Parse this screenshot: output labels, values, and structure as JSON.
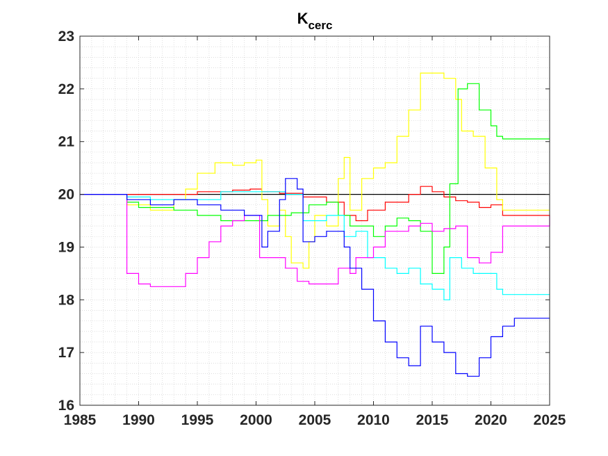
{
  "chart_data": {
    "type": "line",
    "title": "K",
    "title_subscript": "cerc",
    "xlabel": "",
    "ylabel": "",
    "xlim": [
      1985,
      2025
    ],
    "ylim": [
      16,
      23
    ],
    "xticks": [
      1985,
      1990,
      1995,
      2000,
      2005,
      2010,
      2015,
      2020,
      2025
    ],
    "yticks": [
      16,
      17,
      18,
      19,
      20,
      21,
      22,
      23
    ],
    "grid": "minor dotted",
    "line_style": "step",
    "series": [
      {
        "color": "#000000",
        "points": [
          [
            1985,
            20.0
          ],
          [
            2025,
            20.0
          ]
        ]
      },
      {
        "color": "#ff0000",
        "points": [
          [
            1985,
            20.0
          ],
          [
            1989,
            20.0
          ],
          [
            1995,
            20.05
          ],
          [
            1998,
            20.08
          ],
          [
            1999.5,
            20.1
          ],
          [
            2000.5,
            20.05
          ],
          [
            2002,
            20.02
          ],
          [
            2004,
            19.95
          ],
          [
            2006,
            19.85
          ],
          [
            2007.5,
            19.6
          ],
          [
            2008.5,
            19.5
          ],
          [
            2009.5,
            19.7
          ],
          [
            2011,
            19.85
          ],
          [
            2013,
            20.0
          ],
          [
            2014,
            20.15
          ],
          [
            2015,
            20.05
          ],
          [
            2016,
            19.95
          ],
          [
            2017,
            19.88
          ],
          [
            2018,
            19.85
          ],
          [
            2019,
            19.75
          ],
          [
            2020,
            19.8
          ],
          [
            2021,
            19.6
          ],
          [
            2025,
            19.58
          ]
        ]
      },
      {
        "color": "#ffff00",
        "points": [
          [
            1985,
            20.0
          ],
          [
            1989,
            19.8
          ],
          [
            1991,
            19.7
          ],
          [
            1993,
            19.9
          ],
          [
            1994,
            20.1
          ],
          [
            1995,
            20.4
          ],
          [
            1996.5,
            20.6
          ],
          [
            1998,
            20.55
          ],
          [
            1999,
            20.6
          ],
          [
            2000,
            20.65
          ],
          [
            2000.5,
            19.9
          ],
          [
            2001,
            19.4
          ],
          [
            2002,
            19.7
          ],
          [
            2002.5,
            19.2
          ],
          [
            2003,
            18.7
          ],
          [
            2004,
            18.6
          ],
          [
            2004.5,
            19.1
          ],
          [
            2005,
            19.6
          ],
          [
            2006,
            19.4
          ],
          [
            2007,
            20.3
          ],
          [
            2007.5,
            20.7
          ],
          [
            2008,
            19.7
          ],
          [
            2009,
            20.3
          ],
          [
            2010,
            20.5
          ],
          [
            2011,
            20.6
          ],
          [
            2012,
            21.1
          ],
          [
            2013,
            21.6
          ],
          [
            2014,
            22.3
          ],
          [
            2015,
            22.3
          ],
          [
            2016,
            22.2
          ],
          [
            2017,
            21.8
          ],
          [
            2017.5,
            21.2
          ],
          [
            2018.5,
            21.1
          ],
          [
            2019.5,
            20.5
          ],
          [
            2020.5,
            19.9
          ],
          [
            2021,
            19.7
          ],
          [
            2025,
            19.7
          ]
        ]
      },
      {
        "color": "#00ff00",
        "points": [
          [
            1985,
            20.0
          ],
          [
            1989,
            19.85
          ],
          [
            1990,
            19.75
          ],
          [
            1993,
            19.7
          ],
          [
            1995,
            19.6
          ],
          [
            1997,
            19.5
          ],
          [
            2000,
            19.5
          ],
          [
            2001,
            19.6
          ],
          [
            2003,
            19.65
          ],
          [
            2004.5,
            19.8
          ],
          [
            2006,
            19.85
          ],
          [
            2007,
            19.6
          ],
          [
            2008,
            19.4
          ],
          [
            2009,
            19.4
          ],
          [
            2010,
            19.2
          ],
          [
            2011,
            19.4
          ],
          [
            2012,
            19.55
          ],
          [
            2013,
            19.5
          ],
          [
            2014,
            19.3
          ],
          [
            2015,
            18.5
          ],
          [
            2016,
            19.0
          ],
          [
            2016.5,
            20.2
          ],
          [
            2017.2,
            22.0
          ],
          [
            2018,
            22.1
          ],
          [
            2019,
            21.6
          ],
          [
            2020,
            21.3
          ],
          [
            2020.5,
            21.1
          ],
          [
            2021,
            21.05
          ],
          [
            2025,
            21.05
          ]
        ]
      },
      {
        "color": "#00ffff",
        "points": [
          [
            1985,
            20.0
          ],
          [
            1989,
            19.95
          ],
          [
            1991,
            19.9
          ],
          [
            1994,
            19.9
          ],
          [
            1997,
            20.05
          ],
          [
            2000,
            20.05
          ],
          [
            2002.5,
            20.0
          ],
          [
            2004,
            19.5
          ],
          [
            2006,
            19.6
          ],
          [
            2007.5,
            19.2
          ],
          [
            2008.5,
            19.3
          ],
          [
            2009.5,
            18.8
          ],
          [
            2011,
            18.6
          ],
          [
            2012,
            18.5
          ],
          [
            2013,
            18.6
          ],
          [
            2014,
            18.3
          ],
          [
            2015,
            18.2
          ],
          [
            2016,
            18.0
          ],
          [
            2016.5,
            18.8
          ],
          [
            2017.5,
            18.6
          ],
          [
            2018.5,
            18.5
          ],
          [
            2019.5,
            18.5
          ],
          [
            2020.5,
            18.2
          ],
          [
            2021,
            18.1
          ],
          [
            2025,
            18.1
          ]
        ]
      },
      {
        "color": "#ff00ff",
        "points": [
          [
            1985,
            20.0
          ],
          [
            1988.7,
            20.0
          ],
          [
            1989,
            18.5
          ],
          [
            1990,
            18.3
          ],
          [
            1991,
            18.25
          ],
          [
            1993,
            18.25
          ],
          [
            1994,
            18.5
          ],
          [
            1995,
            18.8
          ],
          [
            1996,
            19.1
          ],
          [
            1997,
            19.4
          ],
          [
            1998,
            19.5
          ],
          [
            1999,
            19.6
          ],
          [
            1999.8,
            19.6
          ],
          [
            2000.3,
            18.8
          ],
          [
            2001.5,
            18.8
          ],
          [
            2002.5,
            18.6
          ],
          [
            2003.5,
            18.35
          ],
          [
            2004.5,
            18.3
          ],
          [
            2006,
            18.3
          ],
          [
            2007,
            18.6
          ],
          [
            2008,
            18.5
          ],
          [
            2008.5,
            18.8
          ],
          [
            2010,
            19.0
          ],
          [
            2011,
            19.3
          ],
          [
            2013,
            19.4
          ],
          [
            2014,
            19.45
          ],
          [
            2015,
            19.3
          ],
          [
            2016,
            19.35
          ],
          [
            2017,
            19.4
          ],
          [
            2018,
            18.8
          ],
          [
            2019,
            18.7
          ],
          [
            2020,
            18.9
          ],
          [
            2021,
            19.4
          ],
          [
            2025,
            19.58
          ]
        ]
      },
      {
        "color": "#0000ff",
        "points": [
          [
            1985,
            20.0
          ],
          [
            1989,
            19.9
          ],
          [
            1991,
            19.8
          ],
          [
            1993,
            19.9
          ],
          [
            1995,
            19.8
          ],
          [
            1997,
            19.7
          ],
          [
            1999,
            19.6
          ],
          [
            2000.5,
            19.0
          ],
          [
            2001,
            19.3
          ],
          [
            2002,
            19.9
          ],
          [
            2002.5,
            20.3
          ],
          [
            2003.5,
            20.1
          ],
          [
            2004,
            19.1
          ],
          [
            2005,
            19.2
          ],
          [
            2006,
            19.3
          ],
          [
            2007.5,
            19.0
          ],
          [
            2008,
            18.6
          ],
          [
            2009,
            18.2
          ],
          [
            2010,
            17.6
          ],
          [
            2011,
            17.2
          ],
          [
            2012,
            16.9
          ],
          [
            2013,
            16.75
          ],
          [
            2014,
            17.5
          ],
          [
            2015,
            17.2
          ],
          [
            2016,
            17.0
          ],
          [
            2017,
            16.6
          ],
          [
            2018,
            16.55
          ],
          [
            2019,
            16.9
          ],
          [
            2020,
            17.3
          ],
          [
            2021,
            17.5
          ],
          [
            2022,
            17.65
          ],
          [
            2025,
            17.65
          ]
        ]
      }
    ]
  }
}
